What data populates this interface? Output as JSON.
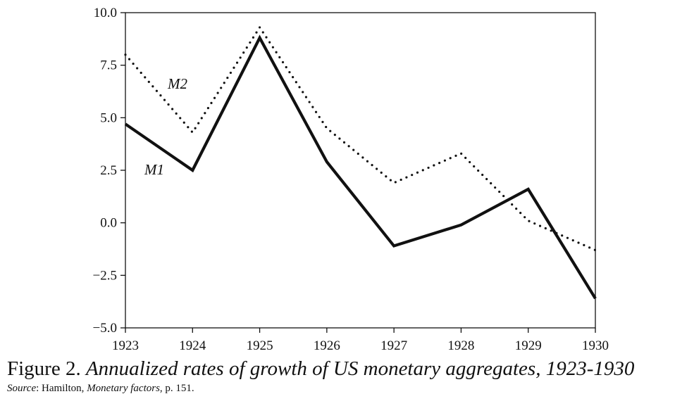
{
  "chart_data": {
    "type": "line",
    "x": [
      1923,
      1924,
      1925,
      1926,
      1927,
      1928,
      1929,
      1930
    ],
    "x_tick_labels": [
      "1923",
      "1924",
      "1925",
      "1926",
      "1927",
      "1928",
      "1929",
      "1930"
    ],
    "y_tick_labels": [
      "10.0",
      "7.5",
      "5.0",
      "2.5",
      "0.0",
      "−2.5",
      "−5.0"
    ],
    "ylim": [
      -5.0,
      10.0
    ],
    "xlim": [
      1923,
      1930
    ],
    "grid": false,
    "series": [
      {
        "name": "M1",
        "style": "solid",
        "color": "#111111",
        "values": [
          4.7,
          2.5,
          8.8,
          2.9,
          -1.1,
          -0.1,
          1.6,
          -3.6
        ]
      },
      {
        "name": "M2",
        "style": "dotted",
        "color": "#111111",
        "values": [
          8.0,
          4.3,
          9.3,
          4.5,
          1.9,
          3.3,
          0.1,
          -1.3
        ]
      }
    ]
  },
  "caption": {
    "figure_label": "Figure 2.",
    "title": "Annualized rates of growth of US monetary aggregates, 1923-1930",
    "source_label": "Source",
    "source_author": ": Hamilton,",
    "source_work": "Monetary factors",
    "source_page": ", p. 151."
  }
}
